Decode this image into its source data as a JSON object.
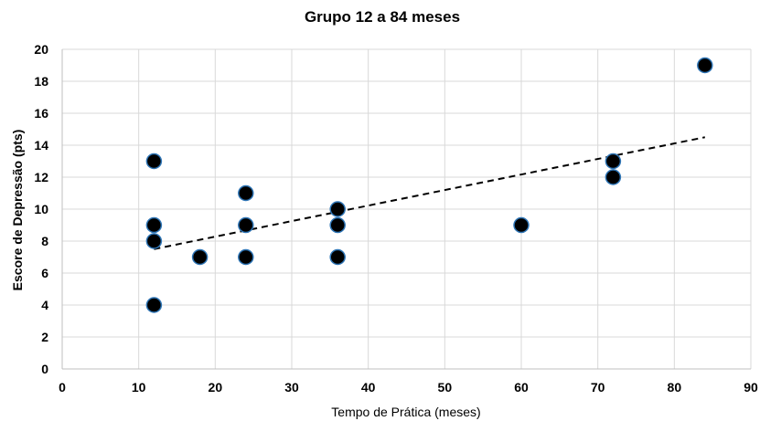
{
  "chart_data": {
    "type": "scatter",
    "title": "Grupo 12 a 84 meses",
    "xlabel": "Tempo de Prática (meses)",
    "ylabel": "Escore de Depressão (pts)",
    "xlim": [
      0,
      90
    ],
    "ylim": [
      0,
      20
    ],
    "x_ticks": [
      0,
      10,
      20,
      30,
      40,
      50,
      60,
      70,
      80,
      90
    ],
    "y_ticks": [
      0,
      2,
      4,
      6,
      8,
      10,
      12,
      14,
      16,
      18,
      20
    ],
    "grid": true,
    "legend": "none",
    "point_color": "#000000",
    "point_edge_color": "#2e75b6",
    "series": [
      {
        "points": [
          {
            "x": 12,
            "y": 13
          },
          {
            "x": 12,
            "y": 9
          },
          {
            "x": 12,
            "y": 8
          },
          {
            "x": 12,
            "y": 4
          },
          {
            "x": 18,
            "y": 7
          },
          {
            "x": 24,
            "y": 11
          },
          {
            "x": 24,
            "y": 9
          },
          {
            "x": 24,
            "y": 7
          },
          {
            "x": 36,
            "y": 10
          },
          {
            "x": 36,
            "y": 9
          },
          {
            "x": 36,
            "y": 7
          },
          {
            "x": 60,
            "y": 9
          },
          {
            "x": 72,
            "y": 13
          },
          {
            "x": 72,
            "y": 12
          },
          {
            "x": 84,
            "y": 19
          }
        ]
      }
    ],
    "trendline": {
      "type": "linear",
      "style": "dashed",
      "color": "#000000",
      "start": {
        "x": 12,
        "y": 7.5
      },
      "end": {
        "x": 84,
        "y": 14.5
      }
    }
  }
}
